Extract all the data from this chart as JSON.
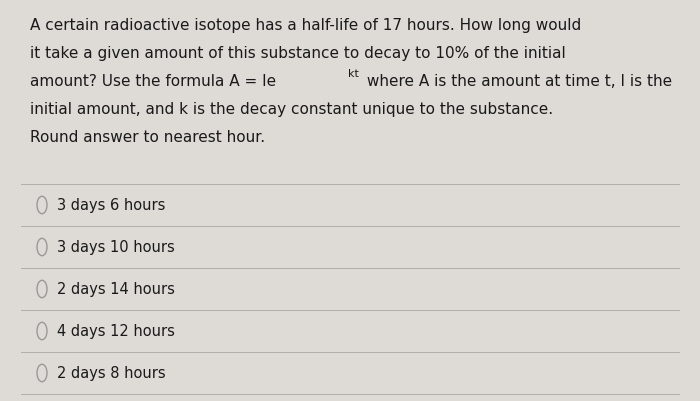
{
  "background_color": "#dedad6",
  "question_lines": [
    "A certain radioactive isotope has a half-life of 17 hours. How long would",
    "it take a given amount of this substance to decay to 10% of the initial",
    "initial amount, and k is the decay constant unique to the substance.",
    "Round answer to nearest hour."
  ],
  "formula_prefix": "amount? Use the formula A = Ie",
  "formula_superscript": "kt",
  "formula_suffix": " where A is the amount at time t, I is the",
  "choices": [
    "3 days 6 hours",
    "3 days 10 hours",
    "2 days 14 hours",
    "4 days 12 hours",
    "2 days 8 hours"
  ],
  "text_color": "#1a1a1a",
  "line_color": "#b0aeab",
  "circle_color": "#999999",
  "font_size_question": 11.0,
  "font_size_choices": 10.5,
  "font_size_super": 8.0
}
